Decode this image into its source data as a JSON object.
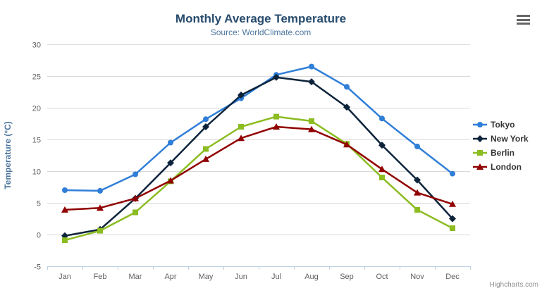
{
  "chart_data": {
    "type": "line",
    "title": "Monthly Average Temperature",
    "subtitle": "Source: WorldClimate.com",
    "categories": [
      "Jan",
      "Feb",
      "Mar",
      "Apr",
      "May",
      "Jun",
      "Jul",
      "Aug",
      "Sep",
      "Oct",
      "Nov",
      "Dec"
    ],
    "xlabel": "",
    "ylabel": "Temperature (°C)",
    "ylim": [
      -5,
      30
    ],
    "y_tick_interval": 5,
    "y_tick_labels": [
      "-5",
      "0",
      "5",
      "10",
      "15",
      "20",
      "25",
      "30"
    ],
    "grid": true,
    "legend_position": "right",
    "series": [
      {
        "name": "Tokyo",
        "color": "#2f7ed8",
        "marker": "circle",
        "values": [
          7.0,
          6.9,
          9.5,
          14.5,
          18.2,
          21.5,
          25.2,
          26.5,
          23.3,
          18.3,
          13.9,
          9.6
        ]
      },
      {
        "name": "New York",
        "color": "#0d233a",
        "marker": "diamond",
        "values": [
          -0.2,
          0.8,
          5.7,
          11.3,
          17.0,
          22.0,
          24.8,
          24.1,
          20.1,
          14.1,
          8.6,
          2.5
        ]
      },
      {
        "name": "Berlin",
        "color": "#8bbc21",
        "marker": "square",
        "values": [
          -0.9,
          0.6,
          3.5,
          8.4,
          13.5,
          17.0,
          18.6,
          17.9,
          14.3,
          9.0,
          3.9,
          1.0
        ]
      },
      {
        "name": "London",
        "color": "#910000",
        "marker": "triangle",
        "values": [
          3.9,
          4.2,
          5.7,
          8.5,
          11.9,
          15.2,
          17.0,
          16.6,
          14.2,
          10.3,
          6.6,
          4.8
        ]
      }
    ]
  },
  "export_menu": {
    "icon": "hamburger-icon"
  },
  "credits": {
    "text": "Highcharts.com"
  },
  "colors": {
    "title": "#274b6d",
    "subtitle": "#4d759e",
    "axis_title": "#4d759e",
    "axis_label": "#606060",
    "axis_line": "#c0d0e0",
    "gridline": "#d8d8d8",
    "legend_label": "#333333",
    "credits": "#909090",
    "background": "#ffffff"
  }
}
